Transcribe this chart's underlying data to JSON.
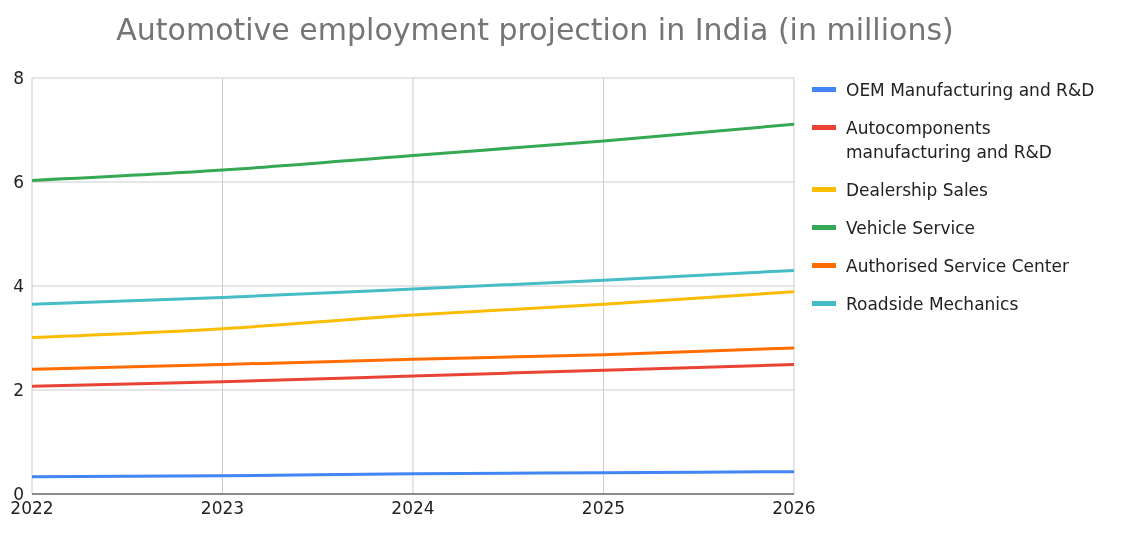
{
  "chart_data": {
    "type": "line",
    "title": "Automotive employment projection in India (in millions)",
    "x": [
      2022,
      2023,
      2024,
      2025,
      2026
    ],
    "series": [
      {
        "name": "OEM Manufacturing and R&D",
        "color": "#4285f4",
        "values": [
          0.33,
          0.35,
          0.39,
          0.41,
          0.43
        ]
      },
      {
        "name": "Autocomponents manufacturing and R&D",
        "color": "#ea4335",
        "values": [
          2.07,
          2.16,
          2.27,
          2.38,
          2.49
        ]
      },
      {
        "name": "Dealership Sales",
        "color": "#fbbc04",
        "values": [
          3.01,
          3.18,
          3.44,
          3.65,
          3.89
        ]
      },
      {
        "name": "Vehicle Service",
        "color": "#34a853",
        "values": [
          6.03,
          6.23,
          6.51,
          6.79,
          7.11
        ]
      },
      {
        "name": "Authorised Service Center",
        "color": "#ff6d01",
        "values": [
          2.4,
          2.49,
          2.59,
          2.68,
          2.81
        ]
      },
      {
        "name": "Roadside Mechanics",
        "color": "#46bdc6",
        "values": [
          3.65,
          3.78,
          3.94,
          4.11,
          4.3
        ]
      }
    ],
    "xlim": [
      2022,
      2026
    ],
    "xticks": [
      2022,
      2023,
      2024,
      2025,
      2026
    ],
    "ylim": [
      0,
      8
    ],
    "yticks": [
      0,
      2,
      4,
      6,
      8
    ],
    "grid": true,
    "legend": "right",
    "marker": "none",
    "line_style": "solid"
  }
}
